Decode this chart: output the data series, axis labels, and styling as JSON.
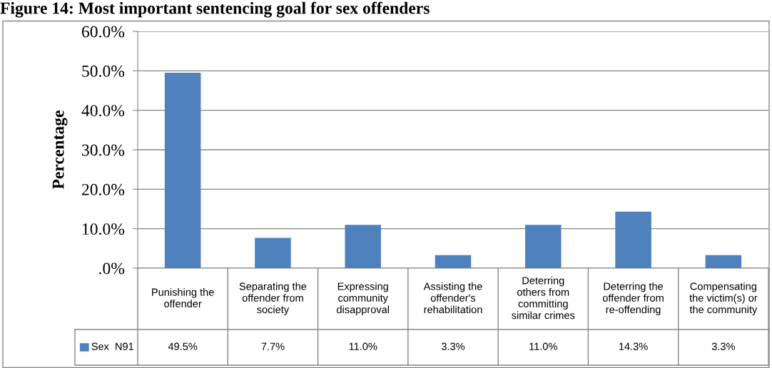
{
  "chart_data": {
    "type": "bar",
    "title": "Figure 14: Most important sentencing goal for sex offenders",
    "ylabel": "Percentage",
    "categories": [
      "Punishing the\noffender",
      "Separating the\noffender from\nsociety",
      "Expressing\ncommunity\ndisapproval",
      "Assisting the\noffender's\nrehabilitation",
      "Deterring\nothers from\ncommitting\nsimilar crimes",
      "Deterring the\noffender from\nre-offending",
      "Compensating\nthe victim(s) or\nthe community"
    ],
    "series": [
      {
        "name": "Sex  N91",
        "color": "#4f81bd",
        "values": [
          49.5,
          7.7,
          11.0,
          3.3,
          11.0,
          14.3,
          3.3
        ],
        "value_labels": [
          "49.5%",
          "7.7%",
          "11.0%",
          "3.3%",
          "11.0%",
          "14.3%",
          "3.3%"
        ]
      }
    ],
    "ylim": [
      0,
      60
    ],
    "yticks": [
      {
        "value": 0,
        "label": ".0%"
      },
      {
        "value": 10,
        "label": "10.0%"
      },
      {
        "value": 20,
        "label": "20.0%"
      },
      {
        "value": 30,
        "label": "30.0%"
      },
      {
        "value": 40,
        "label": "40.0%"
      },
      {
        "value": 50,
        "label": "50.0%"
      },
      {
        "value": 60,
        "label": "60.0%"
      }
    ],
    "grid": "y",
    "legend": "bottom left"
  }
}
